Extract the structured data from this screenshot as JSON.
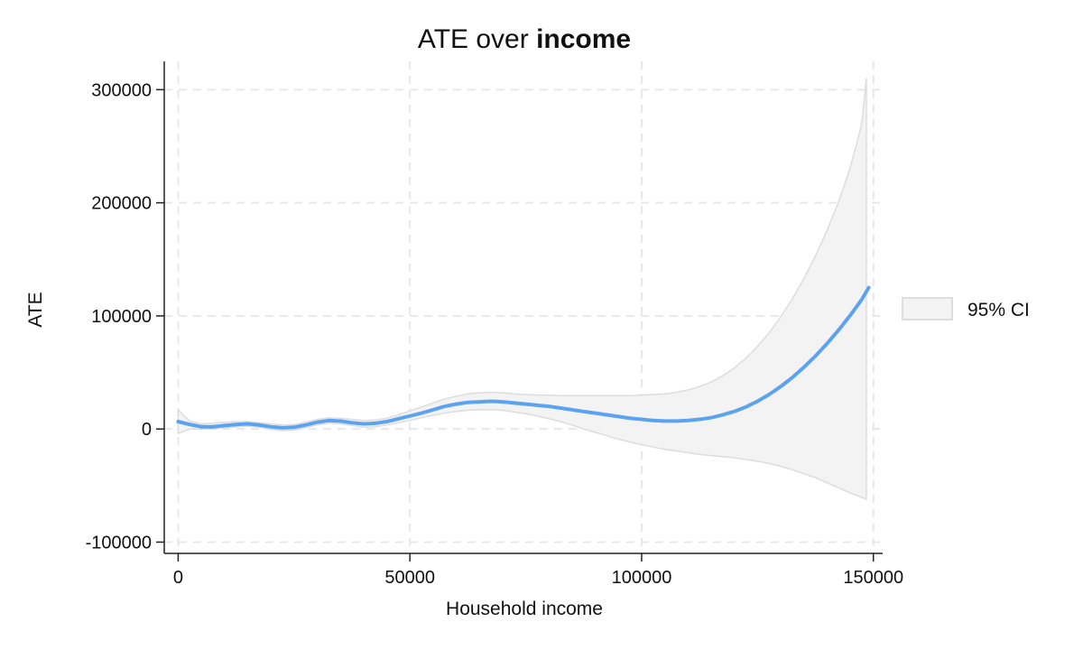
{
  "chart_data": {
    "type": "line",
    "title": "ATE over",
    "title_bold": "income",
    "xlabel": "Household income",
    "ylabel": "ATE",
    "xlim": [
      -3000,
      152000
    ],
    "ylim": [
      -110000,
      325000
    ],
    "xticks": [
      0,
      50000,
      100000,
      150000
    ],
    "yticks": [
      -100000,
      0,
      100000,
      200000,
      300000
    ],
    "grid": true,
    "legend": {
      "position": "right",
      "entries": [
        "95% CI"
      ]
    },
    "colors": {
      "line": "#5ba3f0",
      "band_fill": "#f3f3f3",
      "band_stroke": "#dddddd",
      "grid": "#e8e8e8",
      "axis": "#222222"
    },
    "series": [
      {
        "role": "estimate",
        "x": [
          0,
          2500,
          5000,
          7500,
          10000,
          12500,
          15000,
          17500,
          20000,
          22500,
          25000,
          27500,
          30000,
          32500,
          35000,
          37500,
          40000,
          42500,
          45000,
          47500,
          50000,
          52500,
          55000,
          57500,
          60000,
          62500,
          65000,
          67500,
          70000,
          72500,
          75000,
          77500,
          80000,
          82500,
          85000,
          87500,
          90000,
          92500,
          95000,
          97500,
          100000,
          102500,
          105000,
          107500,
          110000,
          112500,
          115000,
          117500,
          120000,
          122500,
          125000,
          127500,
          130000,
          132500,
          135000,
          137500,
          140000,
          142500,
          145000,
          147500,
          149000
        ],
        "y": [
          6500,
          4000,
          2000,
          2000,
          3000,
          4000,
          4500,
          3500,
          2000,
          1000,
          1500,
          3500,
          6000,
          7500,
          7000,
          5500,
          4500,
          5000,
          6500,
          9000,
          11500,
          14000,
          17000,
          20000,
          22000,
          23500,
          24000,
          24500,
          24000,
          23000,
          22000,
          21000,
          20000,
          18500,
          17000,
          15500,
          14000,
          12500,
          11000,
          9500,
          8500,
          7500,
          7000,
          7000,
          7500,
          8500,
          10000,
          12500,
          15500,
          19500,
          24500,
          30500,
          37500,
          45500,
          54500,
          64500,
          75500,
          87500,
          100500,
          114500,
          125000
        ]
      },
      {
        "role": "ci-upper",
        "x": [
          0,
          2500,
          5000,
          7500,
          10000,
          12500,
          15000,
          17500,
          20000,
          22500,
          25000,
          27500,
          30000,
          32500,
          35000,
          37500,
          40000,
          42500,
          45000,
          47500,
          50000,
          52500,
          55000,
          57500,
          60000,
          62500,
          65000,
          67500,
          70000,
          72500,
          75000,
          77500,
          80000,
          82500,
          85000,
          87500,
          90000,
          92500,
          95000,
          97500,
          100000,
          102500,
          105000,
          107500,
          110000,
          112500,
          115000,
          117500,
          120000,
          122500,
          125000,
          127500,
          130000,
          132500,
          135000,
          137500,
          140000,
          142500,
          145000,
          147500,
          148500
        ],
        "y": [
          17000,
          7000,
          4500,
          5000,
          6000,
          6500,
          6500,
          5500,
          4500,
          3500,
          4000,
          6000,
          8500,
          10000,
          9500,
          8500,
          7500,
          8000,
          9500,
          12500,
          16000,
          19500,
          23000,
          26500,
          29000,
          31000,
          32000,
          32500,
          32000,
          31000,
          30500,
          30000,
          30000,
          29500,
          29500,
          29500,
          29500,
          29500,
          29500,
          29500,
          30000,
          30500,
          31000,
          32500,
          34500,
          37500,
          41500,
          47000,
          54000,
          62500,
          73000,
          85000,
          99000,
          115000,
          133000,
          153000,
          175500,
          201000,
          231000,
          270000,
          310000
        ]
      },
      {
        "role": "ci-lower",
        "x": [
          0,
          2500,
          5000,
          7500,
          10000,
          12500,
          15000,
          17500,
          20000,
          22500,
          25000,
          27500,
          30000,
          32500,
          35000,
          37500,
          40000,
          42500,
          45000,
          47500,
          50000,
          52500,
          55000,
          57500,
          60000,
          62500,
          65000,
          67500,
          70000,
          72500,
          75000,
          77500,
          80000,
          82500,
          85000,
          87500,
          90000,
          92500,
          95000,
          97500,
          100000,
          102500,
          105000,
          107500,
          110000,
          112500,
          115000,
          117500,
          120000,
          122500,
          125000,
          127500,
          130000,
          132500,
          135000,
          137500,
          140000,
          142500,
          145000,
          147500,
          148500
        ],
        "y": [
          -4000,
          0,
          0,
          0,
          1000,
          2000,
          2500,
          1500,
          -500,
          -1500,
          -1000,
          1000,
          3500,
          5000,
          4500,
          3000,
          1500,
          2000,
          3500,
          5500,
          7500,
          10000,
          12000,
          14000,
          15500,
          16500,
          17000,
          17000,
          16500,
          15000,
          13500,
          11500,
          9000,
          6500,
          3500,
          0,
          -3000,
          -6000,
          -9000,
          -11500,
          -14000,
          -16000,
          -18000,
          -19500,
          -21000,
          -22500,
          -23500,
          -24500,
          -25500,
          -27000,
          -28500,
          -30500,
          -33000,
          -36000,
          -39500,
          -43000,
          -47500,
          -52000,
          -56500,
          -60500,
          -62000
        ]
      }
    ]
  }
}
